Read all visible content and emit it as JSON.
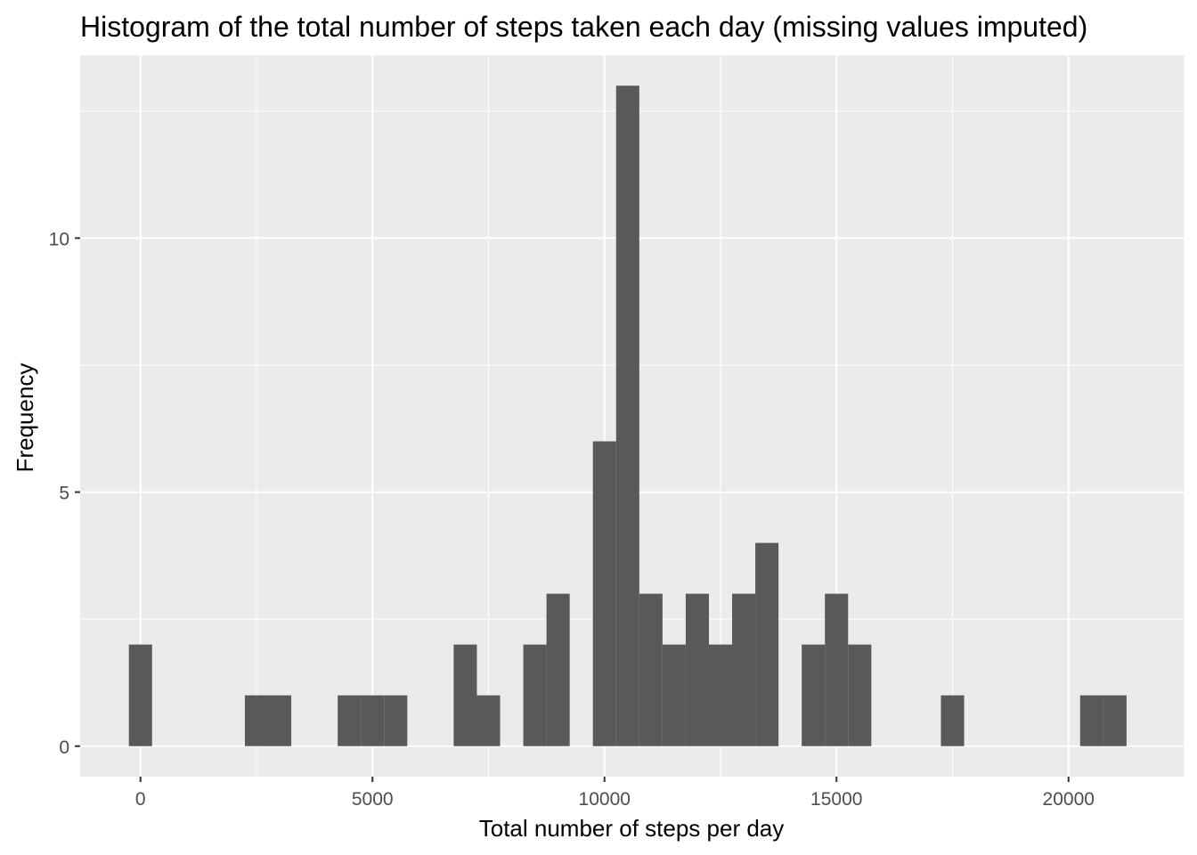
{
  "chart_data": {
    "type": "histogram",
    "title": "Histogram of the total number of steps taken each day (missing values imputed)",
    "xlabel": "Total number of steps per day",
    "ylabel": "Frequency",
    "xlim": [
      -1300,
      22500
    ],
    "ylim": [
      -0.6,
      13.6
    ],
    "bin_width": 500,
    "x_ticks": [
      0,
      5000,
      10000,
      15000,
      20000
    ],
    "x_tick_labels": [
      "0",
      "5000",
      "10000",
      "15000",
      "20000"
    ],
    "y_ticks": [
      0,
      5,
      10
    ],
    "y_tick_labels": [
      "0",
      "5",
      "10"
    ],
    "bins": [
      {
        "x": 0,
        "count": 2
      },
      {
        "x": 2500,
        "count": 1
      },
      {
        "x": 3000,
        "count": 1
      },
      {
        "x": 4500,
        "count": 1
      },
      {
        "x": 5000,
        "count": 1
      },
      {
        "x": 5500,
        "count": 1
      },
      {
        "x": 7000,
        "count": 2
      },
      {
        "x": 7500,
        "count": 1
      },
      {
        "x": 8500,
        "count": 2
      },
      {
        "x": 9000,
        "count": 3
      },
      {
        "x": 10000,
        "count": 6
      },
      {
        "x": 10500,
        "count": 13
      },
      {
        "x": 11000,
        "count": 3
      },
      {
        "x": 11500,
        "count": 2
      },
      {
        "x": 12000,
        "count": 3
      },
      {
        "x": 12500,
        "count": 2
      },
      {
        "x": 13000,
        "count": 3
      },
      {
        "x": 13500,
        "count": 4
      },
      {
        "x": 14500,
        "count": 2
      },
      {
        "x": 15000,
        "count": 3
      },
      {
        "x": 15500,
        "count": 2
      },
      {
        "x": 17500,
        "count": 1
      },
      {
        "x": 20500,
        "count": 1
      },
      {
        "x": 21000,
        "count": 1
      }
    ],
    "colors": {
      "panel": "#ebebeb",
      "grid": "#ffffff",
      "bar": "#595959",
      "tick": "#333333"
    }
  }
}
